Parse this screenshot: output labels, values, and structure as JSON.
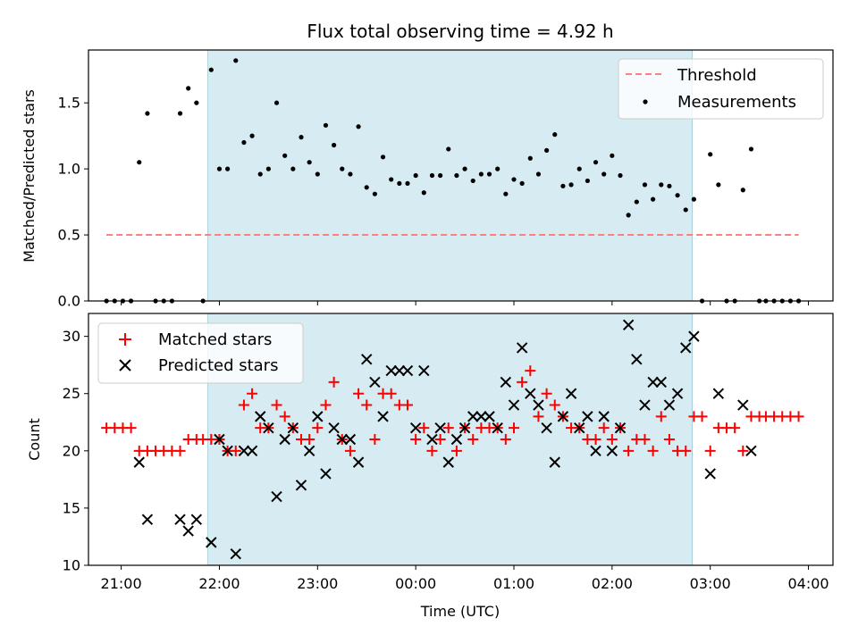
{
  "chart_data": [
    {
      "type": "scatter",
      "title": "Flux total observing time = 4.92 h",
      "ylabel": "Matched/Predicted stars",
      "xlabel": "",
      "xlim": [
        "20:40",
        "04:15"
      ],
      "ylim": [
        0,
        1.9
      ],
      "yticks": [
        "0.0",
        "0.5",
        "1.0",
        "1.5"
      ],
      "shaded_region": {
        "start": "21:53",
        "end": "02:49",
        "color": "#add8e6"
      },
      "legend": {
        "position": "top-right",
        "entries": [
          "Threshold",
          "Measurements"
        ]
      },
      "series": [
        {
          "name": "Threshold",
          "style": "dashed-line",
          "color": "#ff7f7f",
          "points": [
            [
              "20:51",
              0.5
            ],
            [
              "03:54",
              0.5
            ]
          ]
        },
        {
          "name": "Measurements",
          "style": "dot",
          "color": "#000000",
          "points": [
            [
              "20:51",
              0.0
            ],
            [
              "20:56",
              0.0
            ],
            [
              "21:01",
              0.0
            ],
            [
              "21:06",
              0.0
            ],
            [
              "21:11",
              1.05
            ],
            [
              "21:16",
              1.42
            ],
            [
              "21:21",
              0.0
            ],
            [
              "21:26",
              0.0
            ],
            [
              "21:31",
              0.0
            ],
            [
              "21:36",
              1.42
            ],
            [
              "21:41",
              1.61
            ],
            [
              "21:46",
              1.5
            ],
            [
              "21:50",
              0.0
            ],
            [
              "21:55",
              1.75
            ],
            [
              "22:00",
              1.0
            ],
            [
              "22:05",
              1.0
            ],
            [
              "22:10",
              1.82
            ],
            [
              "22:15",
              1.2
            ],
            [
              "22:20",
              1.25
            ],
            [
              "22:25",
              0.96
            ],
            [
              "22:30",
              1.0
            ],
            [
              "22:35",
              1.5
            ],
            [
              "22:40",
              1.1
            ],
            [
              "22:45",
              1.0
            ],
            [
              "22:50",
              1.24
            ],
            [
              "22:55",
              1.05
            ],
            [
              "23:00",
              0.96
            ],
            [
              "23:05",
              1.33
            ],
            [
              "23:10",
              1.18
            ],
            [
              "23:15",
              1.0
            ],
            [
              "23:20",
              0.96
            ],
            [
              "23:25",
              1.32
            ],
            [
              "23:30",
              0.86
            ],
            [
              "23:35",
              0.81
            ],
            [
              "23:40",
              1.09
            ],
            [
              "23:45",
              0.92
            ],
            [
              "23:50",
              0.89
            ],
            [
              "23:55",
              0.89
            ],
            [
              "00:00",
              0.95
            ],
            [
              "00:05",
              0.82
            ],
            [
              "00:10",
              0.95
            ],
            [
              "00:15",
              0.95
            ],
            [
              "00:20",
              1.15
            ],
            [
              "00:25",
              0.95
            ],
            [
              "00:30",
              1.0
            ],
            [
              "00:35",
              0.91
            ],
            [
              "00:40",
              0.96
            ],
            [
              "00:45",
              0.96
            ],
            [
              "00:50",
              1.0
            ],
            [
              "00:55",
              0.81
            ],
            [
              "01:00",
              0.92
            ],
            [
              "01:05",
              0.89
            ],
            [
              "01:10",
              1.08
            ],
            [
              "01:15",
              0.96
            ],
            [
              "01:20",
              1.14
            ],
            [
              "01:25",
              1.26
            ],
            [
              "01:30",
              0.87
            ],
            [
              "01:35",
              0.88
            ],
            [
              "01:40",
              1.0
            ],
            [
              "01:45",
              0.91
            ],
            [
              "01:50",
              1.05
            ],
            [
              "01:55",
              0.96
            ],
            [
              "02:00",
              1.1
            ],
            [
              "02:05",
              0.95
            ],
            [
              "02:10",
              0.65
            ],
            [
              "02:15",
              0.75
            ],
            [
              "02:20",
              0.88
            ],
            [
              "02:25",
              0.77
            ],
            [
              "02:30",
              0.88
            ],
            [
              "02:35",
              0.87
            ],
            [
              "02:40",
              0.8
            ],
            [
              "02:45",
              0.69
            ],
            [
              "02:50",
              0.77
            ],
            [
              "02:55",
              0.0
            ],
            [
              "03:00",
              1.11
            ],
            [
              "03:05",
              0.88
            ],
            [
              "03:10",
              0.0
            ],
            [
              "03:15",
              0.0
            ],
            [
              "03:20",
              0.84
            ],
            [
              "03:25",
              1.15
            ],
            [
              "03:30",
              0.0
            ],
            [
              "03:34",
              0.0
            ],
            [
              "03:39",
              0.0
            ],
            [
              "03:44",
              0.0
            ],
            [
              "03:49",
              0.0
            ],
            [
              "03:54",
              0.0
            ]
          ]
        }
      ]
    },
    {
      "type": "scatter",
      "title": "",
      "xlabel": "Time (UTC)",
      "ylabel": "Count",
      "xlim": [
        "20:40",
        "04:15"
      ],
      "ylim": [
        10,
        32
      ],
      "yticks": [
        "10",
        "15",
        "20",
        "25",
        "30"
      ],
      "xticks": [
        "21:00",
        "22:00",
        "23:00",
        "00:00",
        "01:00",
        "02:00",
        "03:00",
        "04:00"
      ],
      "shaded_region": {
        "start": "21:53",
        "end": "02:49",
        "color": "#add8e6"
      },
      "legend": {
        "position": "top-left",
        "entries": [
          "Matched stars",
          "Predicted stars"
        ]
      },
      "series": [
        {
          "name": "Matched stars",
          "style": "plus",
          "color": "#ff0000",
          "points": [
            [
              "20:51",
              22
            ],
            [
              "20:56",
              22
            ],
            [
              "21:01",
              22
            ],
            [
              "21:06",
              22
            ],
            [
              "21:11",
              20
            ],
            [
              "21:16",
              20
            ],
            [
              "21:21",
              20
            ],
            [
              "21:26",
              20
            ],
            [
              "21:31",
              20
            ],
            [
              "21:36",
              20
            ],
            [
              "21:41",
              21
            ],
            [
              "21:46",
              21
            ],
            [
              "21:50",
              21
            ],
            [
              "21:55",
              21
            ],
            [
              "22:00",
              21
            ],
            [
              "22:05",
              20
            ],
            [
              "22:10",
              20
            ],
            [
              "22:15",
              24
            ],
            [
              "22:20",
              25
            ],
            [
              "22:25",
              22
            ],
            [
              "22:30",
              22
            ],
            [
              "22:35",
              24
            ],
            [
              "22:40",
              23
            ],
            [
              "22:45",
              22
            ],
            [
              "22:50",
              21
            ],
            [
              "22:55",
              21
            ],
            [
              "23:00",
              22
            ],
            [
              "23:05",
              24
            ],
            [
              "23:10",
              26
            ],
            [
              "23:15",
              21
            ],
            [
              "23:20",
              20
            ],
            [
              "23:25",
              25
            ],
            [
              "23:30",
              24
            ],
            [
              "23:35",
              21
            ],
            [
              "23:40",
              25
            ],
            [
              "23:45",
              25
            ],
            [
              "23:50",
              24
            ],
            [
              "23:55",
              24
            ],
            [
              "00:00",
              21
            ],
            [
              "00:05",
              22
            ],
            [
              "00:10",
              20
            ],
            [
              "00:15",
              21
            ],
            [
              "00:20",
              22
            ],
            [
              "00:25",
              20
            ],
            [
              "00:30",
              22
            ],
            [
              "00:35",
              21
            ],
            [
              "00:40",
              22
            ],
            [
              "00:45",
              22
            ],
            [
              "00:50",
              22
            ],
            [
              "00:55",
              21
            ],
            [
              "01:00",
              22
            ],
            [
              "01:05",
              26
            ],
            [
              "01:10",
              27
            ],
            [
              "01:15",
              23
            ],
            [
              "01:20",
              25
            ],
            [
              "01:25",
              24
            ],
            [
              "01:30",
              23
            ],
            [
              "01:35",
              22
            ],
            [
              "01:40",
              22
            ],
            [
              "01:45",
              21
            ],
            [
              "01:50",
              21
            ],
            [
              "01:55",
              22
            ],
            [
              "02:00",
              21
            ],
            [
              "02:05",
              22
            ],
            [
              "02:10",
              20
            ],
            [
              "02:15",
              21
            ],
            [
              "02:20",
              21
            ],
            [
              "02:25",
              20
            ],
            [
              "02:30",
              23
            ],
            [
              "02:35",
              21
            ],
            [
              "02:40",
              20
            ],
            [
              "02:45",
              20
            ],
            [
              "02:50",
              23
            ],
            [
              "02:55",
              23
            ],
            [
              "03:00",
              20
            ],
            [
              "03:05",
              22
            ],
            [
              "03:10",
              22
            ],
            [
              "03:15",
              22
            ],
            [
              "03:20",
              20
            ],
            [
              "03:25",
              23
            ],
            [
              "03:30",
              23
            ],
            [
              "03:34",
              23
            ],
            [
              "03:39",
              23
            ],
            [
              "03:44",
              23
            ],
            [
              "03:49",
              23
            ],
            [
              "03:54",
              23
            ]
          ]
        },
        {
          "name": "Predicted stars",
          "style": "x",
          "color": "#000000",
          "points": [
            [
              "21:11",
              19
            ],
            [
              "21:16",
              14
            ],
            [
              "21:36",
              14
            ],
            [
              "21:41",
              13
            ],
            [
              "21:46",
              14
            ],
            [
              "21:55",
              12
            ],
            [
              "22:00",
              21
            ],
            [
              "22:05",
              20
            ],
            [
              "22:10",
              11
            ],
            [
              "22:15",
              20
            ],
            [
              "22:20",
              20
            ],
            [
              "22:25",
              23
            ],
            [
              "22:30",
              22
            ],
            [
              "22:35",
              16
            ],
            [
              "22:40",
              21
            ],
            [
              "22:45",
              22
            ],
            [
              "22:50",
              17
            ],
            [
              "22:55",
              20
            ],
            [
              "23:00",
              23
            ],
            [
              "23:05",
              18
            ],
            [
              "23:10",
              22
            ],
            [
              "23:15",
              21
            ],
            [
              "23:20",
              21
            ],
            [
              "23:25",
              19
            ],
            [
              "23:30",
              28
            ],
            [
              "23:35",
              26
            ],
            [
              "23:40",
              23
            ],
            [
              "23:45",
              27
            ],
            [
              "23:50",
              27
            ],
            [
              "23:55",
              27
            ],
            [
              "00:00",
              22
            ],
            [
              "00:05",
              27
            ],
            [
              "00:10",
              21
            ],
            [
              "00:15",
              22
            ],
            [
              "00:20",
              19
            ],
            [
              "00:25",
              21
            ],
            [
              "00:30",
              22
            ],
            [
              "00:35",
              23
            ],
            [
              "00:40",
              23
            ],
            [
              "00:45",
              23
            ],
            [
              "00:50",
              22
            ],
            [
              "00:55",
              26
            ],
            [
              "01:00",
              24
            ],
            [
              "01:05",
              29
            ],
            [
              "01:10",
              25
            ],
            [
              "01:15",
              24
            ],
            [
              "01:20",
              22
            ],
            [
              "01:25",
              19
            ],
            [
              "01:30",
              23
            ],
            [
              "01:35",
              25
            ],
            [
              "01:40",
              22
            ],
            [
              "01:45",
              23
            ],
            [
              "01:50",
              20
            ],
            [
              "01:55",
              23
            ],
            [
              "02:00",
              20
            ],
            [
              "02:05",
              22
            ],
            [
              "02:10",
              31
            ],
            [
              "02:15",
              28
            ],
            [
              "02:20",
              24
            ],
            [
              "02:25",
              26
            ],
            [
              "02:30",
              26
            ],
            [
              "02:35",
              24
            ],
            [
              "02:40",
              25
            ],
            [
              "02:45",
              29
            ],
            [
              "02:50",
              30
            ],
            [
              "03:00",
              18
            ],
            [
              "03:05",
              25
            ],
            [
              "03:20",
              24
            ],
            [
              "03:25",
              20
            ]
          ]
        }
      ]
    }
  ]
}
